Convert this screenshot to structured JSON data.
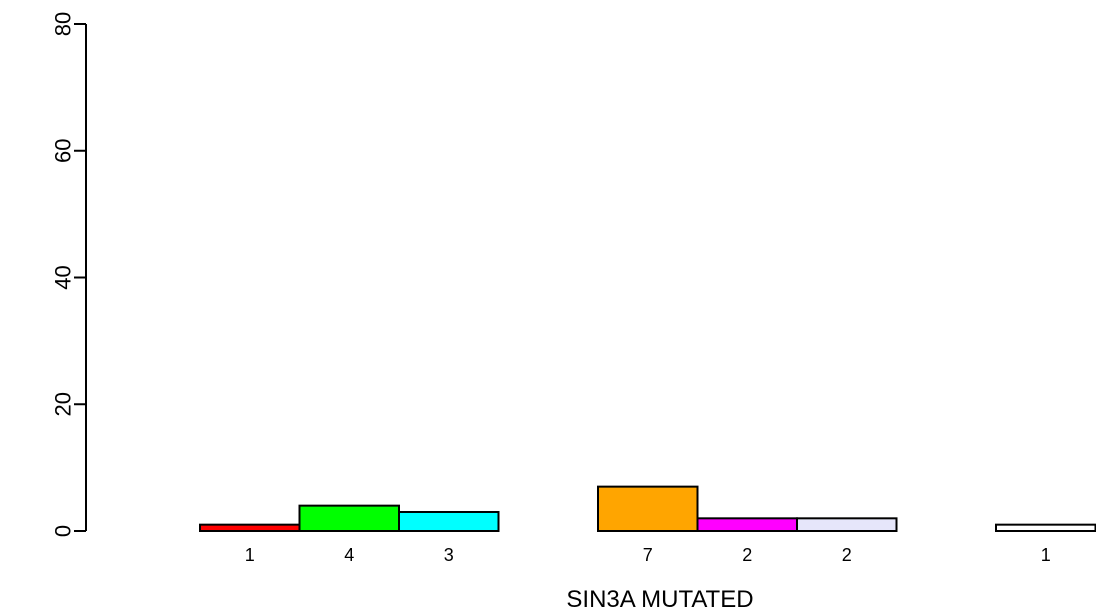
{
  "chart_data": {
    "type": "bar",
    "title": "",
    "xlabel": "SIN3A MUTATED",
    "ylabel": "",
    "ylim": [
      0,
      80
    ],
    "yticks": [
      0,
      20,
      40,
      60,
      80
    ],
    "grid": false,
    "legend": "none",
    "groups": [
      {
        "bars": [
          {
            "value": 1,
            "label": "1",
            "color": "#ff0000"
          },
          {
            "value": 4,
            "label": "4",
            "color": "#00ff00"
          },
          {
            "value": 3,
            "label": "3",
            "color": "#00ffff"
          }
        ]
      },
      {
        "bars": [
          {
            "value": 7,
            "label": "7",
            "color": "#ffa500"
          },
          {
            "value": 2,
            "label": "2",
            "color": "#ff00ff"
          },
          {
            "value": 2,
            "label": "2",
            "color": "#e6e6fa"
          }
        ]
      },
      {
        "bars": [
          {
            "value": 1,
            "label": "1",
            "color": "#ffffff"
          }
        ]
      }
    ]
  }
}
